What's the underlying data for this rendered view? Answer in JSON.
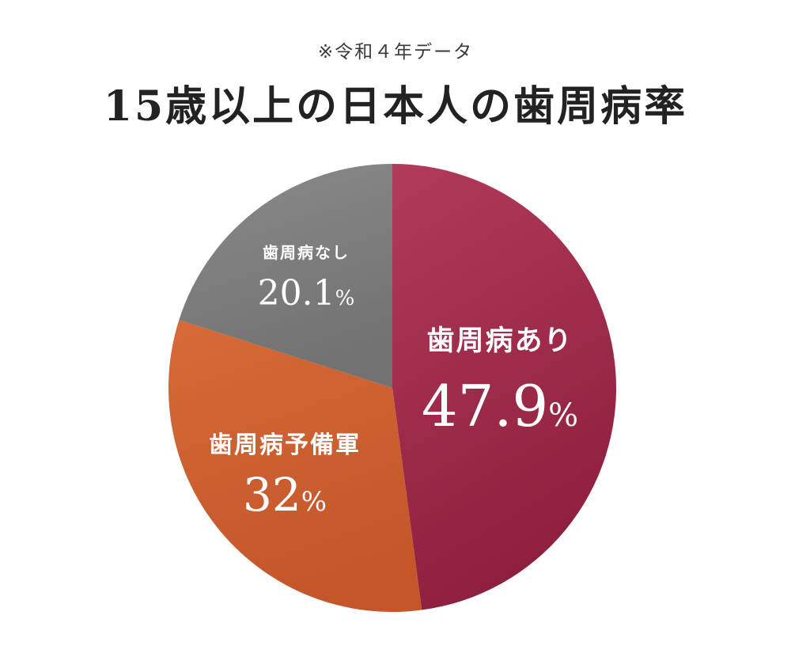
{
  "header": {
    "note": "※令和４年データ",
    "title": "15歳以上の日本人の歯周病率"
  },
  "chart_data": {
    "type": "pie",
    "title": "15歳以上の日本人の歯周病率",
    "subtitle": "※令和４年データ",
    "unit": "%",
    "start": "12 o'clock, clockwise",
    "slices": [
      {
        "label": "歯周病あり",
        "value": 47.9,
        "display": "47.9",
        "color_top": "#b23a5a",
        "color_bottom": "#8e1f3e"
      },
      {
        "label": "歯周病予備軍",
        "value": 32,
        "display": "32",
        "color_top": "#d66a38",
        "color_bottom": "#c4562a"
      },
      {
        "label": "歯周病なし",
        "value": 20.1,
        "display": "20.1",
        "color_top": "#8a8a8a",
        "color_bottom": "#727272"
      }
    ]
  }
}
